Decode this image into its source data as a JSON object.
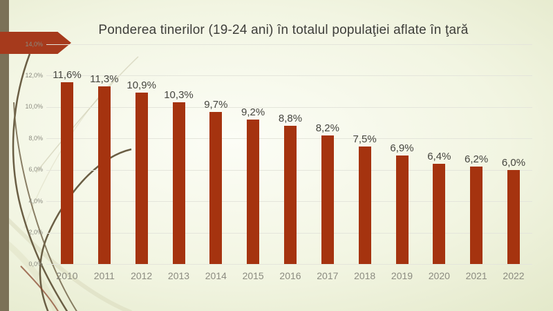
{
  "slide": {
    "title": "Ponderea tinerilor (19-24 ani) în totalul populaţiei aflate în ţară"
  },
  "colors": {
    "bar": "#A5330F",
    "arrow": "#A63A1C",
    "left_stripe": "#7B7157",
    "gridline": "#E4E5DB",
    "axis_text": "#8B8B80",
    "data_label": "#45453F",
    "title_text": "#3E3E3A"
  },
  "chart_data": {
    "type": "bar",
    "title": "Ponderea tinerilor (19-24 ani) în totalul populaţiei aflate în ţară",
    "xlabel": "",
    "ylabel": "",
    "categories": [
      "2010",
      "2011",
      "2012",
      "2013",
      "2014",
      "2015",
      "2016",
      "2017",
      "2018",
      "2019",
      "2020",
      "2021",
      "2022"
    ],
    "values": [
      11.6,
      11.3,
      10.9,
      10.3,
      9.7,
      9.2,
      8.8,
      8.2,
      7.5,
      6.9,
      6.4,
      6.2,
      6.0
    ],
    "data_labels": [
      "11,6%",
      "11,3%",
      "10,9%",
      "10,3%",
      "9,7%",
      "9,2%",
      "8,8%",
      "8,2%",
      "7,5%",
      "6,9%",
      "6,4%",
      "6,2%",
      "6,0%"
    ],
    "ylim": [
      0,
      14
    ],
    "yticks": [
      0,
      2,
      4,
      6,
      8,
      10,
      12,
      14
    ],
    "ytick_labels": [
      "0,0%",
      "2,0%",
      "4,0%",
      "6,0%",
      "8,0%",
      "10,0%",
      "12,0%",
      "14,0%"
    ],
    "grid": true,
    "legend_position": "none"
  }
}
